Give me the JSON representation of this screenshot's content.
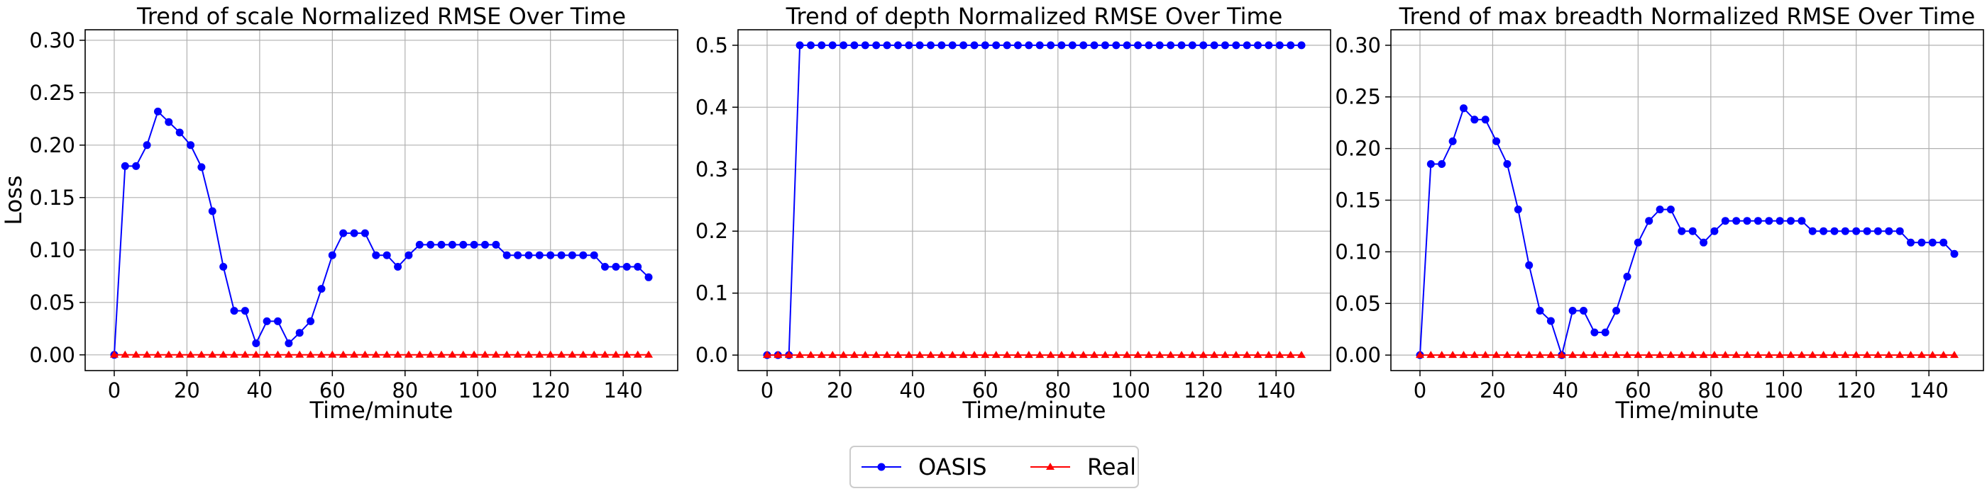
{
  "legend": {
    "placement": "bottom-center",
    "entries": [
      {
        "label": "OASIS",
        "color": "#0000ff",
        "marker": "circle"
      },
      {
        "label": "Real",
        "color": "#ff0000",
        "marker": "triangle"
      }
    ]
  },
  "chart_data": [
    {
      "type": "line",
      "title": "Trend of scale Normalized RMSE Over Time",
      "xlabel": "Time/minute",
      "ylabel": "Loss",
      "xlim": [
        -8,
        155
      ],
      "ylim": [
        -0.015,
        0.31
      ],
      "xticks": [
        0,
        20,
        40,
        60,
        80,
        100,
        120,
        140
      ],
      "yticks": [
        0.0,
        0.05,
        0.1,
        0.15,
        0.2,
        0.25,
        0.3
      ],
      "ytick_labels": [
        "0.00",
        "0.05",
        "0.10",
        "0.15",
        "0.20",
        "0.25",
        "0.30"
      ],
      "grid": true,
      "series": [
        {
          "name": "OASIS",
          "color": "#0000ff",
          "marker": "circle",
          "x": [
            0,
            3,
            6,
            9,
            12,
            15,
            18,
            21,
            24,
            27,
            30,
            33,
            36,
            39,
            42,
            45,
            48,
            51,
            54,
            57,
            60,
            63,
            66,
            69,
            72,
            75,
            78,
            81,
            84,
            87,
            90,
            93,
            96,
            99,
            102,
            105,
            108,
            111,
            114,
            117,
            120,
            123,
            126,
            129,
            132,
            135,
            138,
            141,
            144,
            147
          ],
          "y": [
            0,
            0.18,
            0.18,
            0.2,
            0.232,
            0.222,
            0.212,
            0.2,
            0.179,
            0.137,
            0.084,
            0.042,
            0.042,
            0.011,
            0.032,
            0.032,
            0.011,
            0.021,
            0.032,
            0.063,
            0.095,
            0.116,
            0.116,
            0.116,
            0.095,
            0.095,
            0.084,
            0.095,
            0.105,
            0.105,
            0.105,
            0.105,
            0.105,
            0.105,
            0.105,
            0.105,
            0.095,
            0.095,
            0.095,
            0.095,
            0.095,
            0.095,
            0.095,
            0.095,
            0.095,
            0.084,
            0.084,
            0.084,
            0.084,
            0.074
          ]
        },
        {
          "name": "Real",
          "color": "#ff0000",
          "marker": "triangle",
          "constant": 0
        }
      ]
    },
    {
      "type": "line",
      "title": "Trend of depth Normalized RMSE Over Time",
      "xlabel": "Time/minute",
      "ylabel": "",
      "xlim": [
        -8,
        155
      ],
      "ylim": [
        -0.025,
        0.525
      ],
      "xticks": [
        0,
        20,
        40,
        60,
        80,
        100,
        120,
        140
      ],
      "yticks": [
        0.0,
        0.1,
        0.2,
        0.3,
        0.4,
        0.5
      ],
      "ytick_labels": [
        "0.0",
        "0.1",
        "0.2",
        "0.3",
        "0.4",
        "0.5"
      ],
      "grid": true,
      "series": [
        {
          "name": "OASIS",
          "color": "#0000ff",
          "marker": "circle",
          "x": [
            0,
            3,
            6,
            9,
            12,
            15,
            18,
            21,
            24,
            27,
            30,
            33,
            36,
            39,
            42,
            45,
            48,
            51,
            54,
            57,
            60,
            63,
            66,
            69,
            72,
            75,
            78,
            81,
            84,
            87,
            90,
            93,
            96,
            99,
            102,
            105,
            108,
            111,
            114,
            117,
            120,
            123,
            126,
            129,
            132,
            135,
            138,
            141,
            144,
            147
          ],
          "y": [
            0,
            0,
            0,
            0.5,
            0.5,
            0.5,
            0.5,
            0.5,
            0.5,
            0.5,
            0.5,
            0.5,
            0.5,
            0.5,
            0.5,
            0.5,
            0.5,
            0.5,
            0.5,
            0.5,
            0.5,
            0.5,
            0.5,
            0.5,
            0.5,
            0.5,
            0.5,
            0.5,
            0.5,
            0.5,
            0.5,
            0.5,
            0.5,
            0.5,
            0.5,
            0.5,
            0.5,
            0.5,
            0.5,
            0.5,
            0.5,
            0.5,
            0.5,
            0.5,
            0.5,
            0.5,
            0.5,
            0.5,
            0.5,
            0.5
          ]
        },
        {
          "name": "Real",
          "color": "#ff0000",
          "marker": "triangle",
          "constant": 0
        }
      ]
    },
    {
      "type": "line",
      "title": "Trend of max breadth Normalized RMSE Over Time",
      "xlabel": "Time/minute",
      "ylabel": "",
      "xlim": [
        -8,
        155
      ],
      "ylim": [
        -0.015,
        0.315
      ],
      "xticks": [
        0,
        20,
        40,
        60,
        80,
        100,
        120,
        140
      ],
      "yticks": [
        0.0,
        0.05,
        0.1,
        0.15,
        0.2,
        0.25,
        0.3
      ],
      "ytick_labels": [
        "0.00",
        "0.05",
        "0.10",
        "0.15",
        "0.20",
        "0.25",
        "0.30"
      ],
      "grid": true,
      "series": [
        {
          "name": "OASIS",
          "color": "#0000ff",
          "marker": "circle",
          "x": [
            0,
            3,
            6,
            9,
            12,
            15,
            18,
            21,
            24,
            27,
            30,
            33,
            36,
            39,
            42,
            45,
            48,
            51,
            54,
            57,
            60,
            63,
            66,
            69,
            72,
            75,
            78,
            81,
            84,
            87,
            90,
            93,
            96,
            99,
            102,
            105,
            108,
            111,
            114,
            117,
            120,
            123,
            126,
            129,
            132,
            135,
            138,
            141,
            144,
            147
          ],
          "y": [
            0,
            0.185,
            0.185,
            0.207,
            0.239,
            0.228,
            0.228,
            0.207,
            0.185,
            0.141,
            0.087,
            0.043,
            0.033,
            0,
            0.043,
            0.043,
            0.022,
            0.022,
            0.043,
            0.076,
            0.109,
            0.13,
            0.141,
            0.141,
            0.12,
            0.12,
            0.109,
            0.12,
            0.13,
            0.13,
            0.13,
            0.13,
            0.13,
            0.13,
            0.13,
            0.13,
            0.12,
            0.12,
            0.12,
            0.12,
            0.12,
            0.12,
            0.12,
            0.12,
            0.12,
            0.109,
            0.109,
            0.109,
            0.109,
            0.098
          ]
        },
        {
          "name": "Real",
          "color": "#ff0000",
          "marker": "triangle",
          "constant": 0
        }
      ]
    }
  ]
}
